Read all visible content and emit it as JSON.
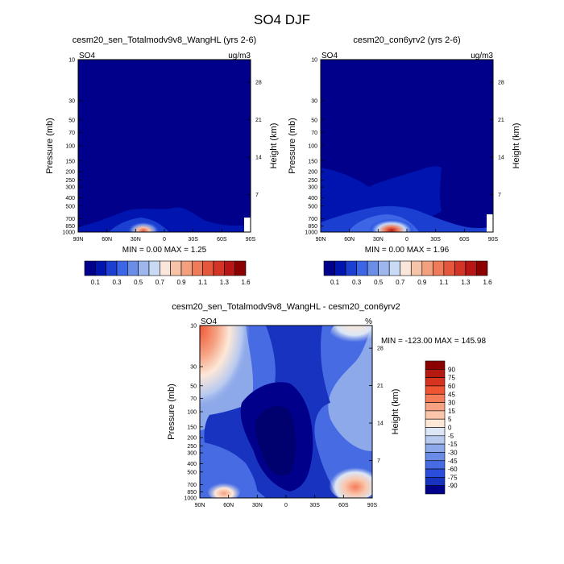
{
  "figure_title": "SO4 DJF",
  "chart_data": [
    {
      "type": "heatmap",
      "panel": "top-left",
      "title": "cesm20_sen_Totalmodv9v8_WangHL (yrs 2-6)",
      "left_label": "SO4",
      "right_label": "ug/m3",
      "xlabel": "",
      "ylabel": "Pressure (mb)",
      "y2label": "Height (km)",
      "x_ticks": [
        "90N",
        "60N",
        "30N",
        "0",
        "30S",
        "60S",
        "90S"
      ],
      "y_ticks": [
        "10",
        "30",
        "50",
        "70",
        "100",
        "150",
        "200",
        "250",
        "300",
        "400",
        "500",
        "700",
        "850",
        "1000"
      ],
      "y2_ticks": [
        "28",
        "21",
        "14",
        "7"
      ],
      "min": 0.0,
      "max": 1.25,
      "stats": "MIN =   0.00   MAX =   1.25",
      "colorbar_labels": [
        "0.1",
        "0.3",
        "0.5",
        "0.7",
        "0.9",
        "1.1",
        "1.3",
        "1.6"
      ],
      "colorbar_colors": [
        "#00008b",
        "#0015b0",
        "#1b3fd0",
        "#3d66e6",
        "#6a8de8",
        "#9db6ee",
        "#c9daf5",
        "#fbe6dc",
        "#f6c2a8",
        "#f3a07f",
        "#ee7c5b",
        "#e5573d",
        "#d43426",
        "#b81515",
        "#8b0000"
      ],
      "background_value": 0.02,
      "features": [
        {
          "name": "surface maximum near 20N",
          "value": 1.2
        },
        {
          "name": "boundary-layer plume 50N-10S",
          "value": 0.4
        }
      ]
    },
    {
      "type": "heatmap",
      "panel": "top-right",
      "title": "cesm20_con6yrv2 (yrs 2-6)",
      "left_label": "SO4",
      "right_label": "ug/m3",
      "xlabel": "",
      "ylabel": "Pressure (mb)",
      "y2label": "Height (km)",
      "x_ticks": [
        "90N",
        "60N",
        "30N",
        "0",
        "30S",
        "60S",
        "90S"
      ],
      "y_ticks": [
        "10",
        "30",
        "50",
        "70",
        "100",
        "150",
        "200",
        "250",
        "300",
        "400",
        "500",
        "700",
        "850",
        "1000"
      ],
      "y2_ticks": [
        "28",
        "21",
        "14",
        "7"
      ],
      "min": 0.0,
      "max": 1.96,
      "stats": "MIN =   0.00   MAX =   1.96",
      "colorbar_labels": [
        "0.1",
        "0.3",
        "0.5",
        "0.7",
        "0.9",
        "1.1",
        "1.3",
        "1.6"
      ],
      "colorbar_colors": [
        "#00008b",
        "#0015b0",
        "#1b3fd0",
        "#3d66e6",
        "#6a8de8",
        "#9db6ee",
        "#c9daf5",
        "#fbe6dc",
        "#f6c2a8",
        "#f3a07f",
        "#ee7c5b",
        "#e5573d",
        "#d43426",
        "#b81515",
        "#8b0000"
      ],
      "background_value": 0.02,
      "features": [
        {
          "name": "surface maximum near 25N",
          "value": 1.9
        },
        {
          "name": "tropospheric layer 90N-30S",
          "value": 0.1
        }
      ]
    },
    {
      "type": "heatmap",
      "panel": "bottom",
      "title": "cesm20_sen_Totalmodv9v8_WangHL - cesm20_con6yrv2",
      "left_label": "SO4",
      "right_label": "%",
      "xlabel": "",
      "ylabel": "Pressure (mb)",
      "y2label": "Height (km)",
      "x_ticks": [
        "90N",
        "60N",
        "30N",
        "0",
        "30S",
        "60S",
        "90S"
      ],
      "y_ticks": [
        "10",
        "30",
        "50",
        "70",
        "100",
        "150",
        "200",
        "250",
        "300",
        "400",
        "500",
        "700",
        "850",
        "1000"
      ],
      "y2_ticks": [
        "28",
        "21",
        "14",
        "7"
      ],
      "min": -123.0,
      "max": 145.98,
      "stats": "MIN = -123.00  MAX = 145.98",
      "colorbar_labels": [
        "90",
        "75",
        "60",
        "45",
        "30",
        "15",
        "5",
        "0",
        "-5",
        "-15",
        "-30",
        "-45",
        "-60",
        "-75",
        "-90"
      ],
      "colorbar_colors": [
        "#8b0000",
        "#b41a10",
        "#d63420",
        "#ef5533",
        "#f47c59",
        "#f6a283",
        "#f9c6ac",
        "#fde8d8",
        "#dce6f6",
        "#b7c9ef",
        "#8ea9ea",
        "#6a8be6",
        "#476be3",
        "#2a4edb",
        "#1733c0",
        "#00008b"
      ],
      "features": [
        {
          "name": "positive upper-left 75N-90N 10-30mb",
          "value": 60
        },
        {
          "name": "positive upper-right 30S-70S 10mb",
          "value": 5
        },
        {
          "name": "negative tropical core 30N-10S",
          "value": -90
        },
        {
          "name": "positive surface 40S-80S",
          "value": 30
        },
        {
          "name": "positive surface 60N-80N",
          "value": 15
        }
      ]
    }
  ]
}
